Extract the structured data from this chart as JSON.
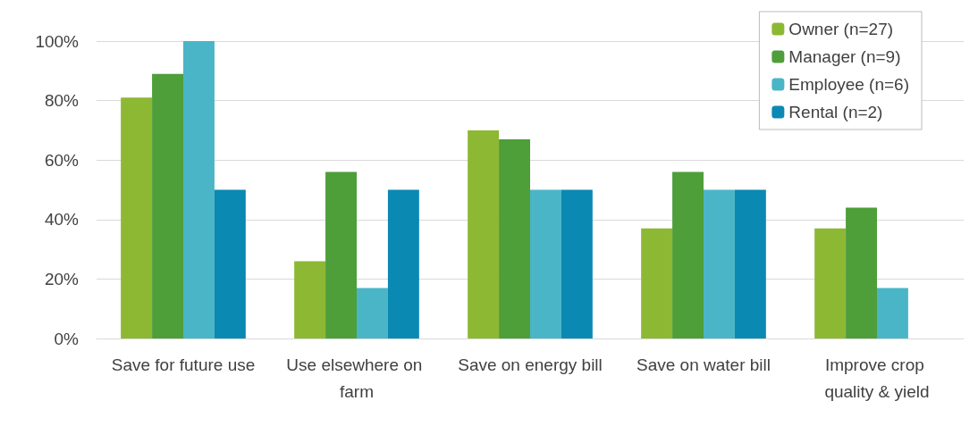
{
  "chart_data": {
    "type": "bar",
    "categories": [
      "Save for future use",
      "Use elsewhere on farm",
      "Save on energy bill",
      "Save on water bill",
      "Improve crop quality & yield"
    ],
    "series": [
      {
        "name": "Owner (n=27)",
        "color": "#8db834",
        "values": [
          81,
          26,
          70,
          37,
          37
        ]
      },
      {
        "name": "Manager (n=9)",
        "color": "#4e9e3a",
        "values": [
          89,
          56,
          67,
          56,
          44
        ]
      },
      {
        "name": "Employee (n=6)",
        "color": "#4ab5c7",
        "values": [
          100,
          17,
          50,
          50,
          17
        ]
      },
      {
        "name": "Rental (n=2)",
        "color": "#0a89b3",
        "values": [
          50,
          50,
          50,
          50,
          0
        ]
      }
    ],
    "ylim": [
      0,
      100
    ],
    "yticks": [
      {
        "value": 0,
        "label": "0%"
      },
      {
        "value": 20,
        "label": "20%"
      },
      {
        "value": 40,
        "label": "40%"
      },
      {
        "value": 60,
        "label": "60%"
      },
      {
        "value": 80,
        "label": "80%"
      },
      {
        "value": 100,
        "label": "100%"
      }
    ],
    "grid": "y",
    "legend": "top right"
  }
}
